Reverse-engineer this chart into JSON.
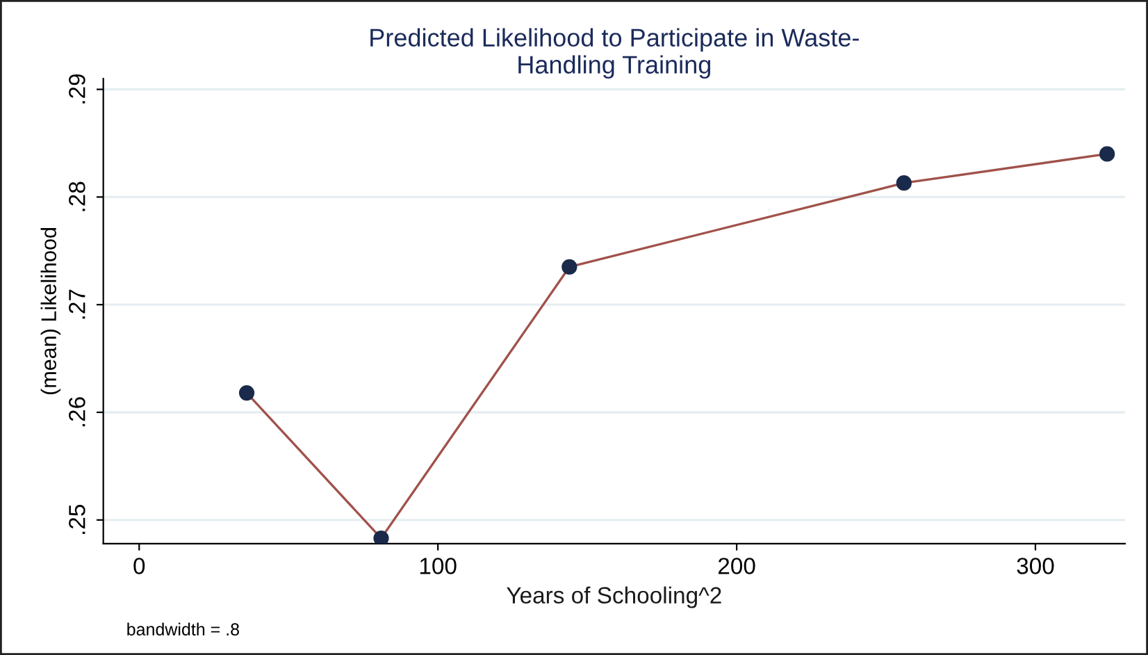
{
  "chart_data": {
    "type": "line",
    "title": "Predicted Likelihood to Participate in Waste-\nHandling Training",
    "xlabel": "Years of Schooling^2",
    "ylabel": "(mean) Likelihood",
    "x": [
      36,
      81,
      144,
      256,
      324
    ],
    "series": [
      {
        "color": "#a0524b",
        "values": [
          0.2618,
          0.2483,
          0.2735,
          0.2813,
          0.284
        ]
      }
    ],
    "marker": "circle",
    "xlim": [
      -12,
      330
    ],
    "ylim": [
      0.2478,
      0.291
    ],
    "xticks": [
      0,
      100,
      200,
      300
    ],
    "yticks": [
      {
        "value": 0.25,
        "label": ".25"
      },
      {
        "value": 0.26,
        "label": ".26"
      },
      {
        "value": 0.27,
        "label": ".27"
      },
      {
        "value": 0.28,
        "label": ".28"
      },
      {
        "value": 0.29,
        "label": ".29"
      }
    ],
    "grid": "y",
    "annotations": [
      "bandwidth = .8"
    ]
  }
}
